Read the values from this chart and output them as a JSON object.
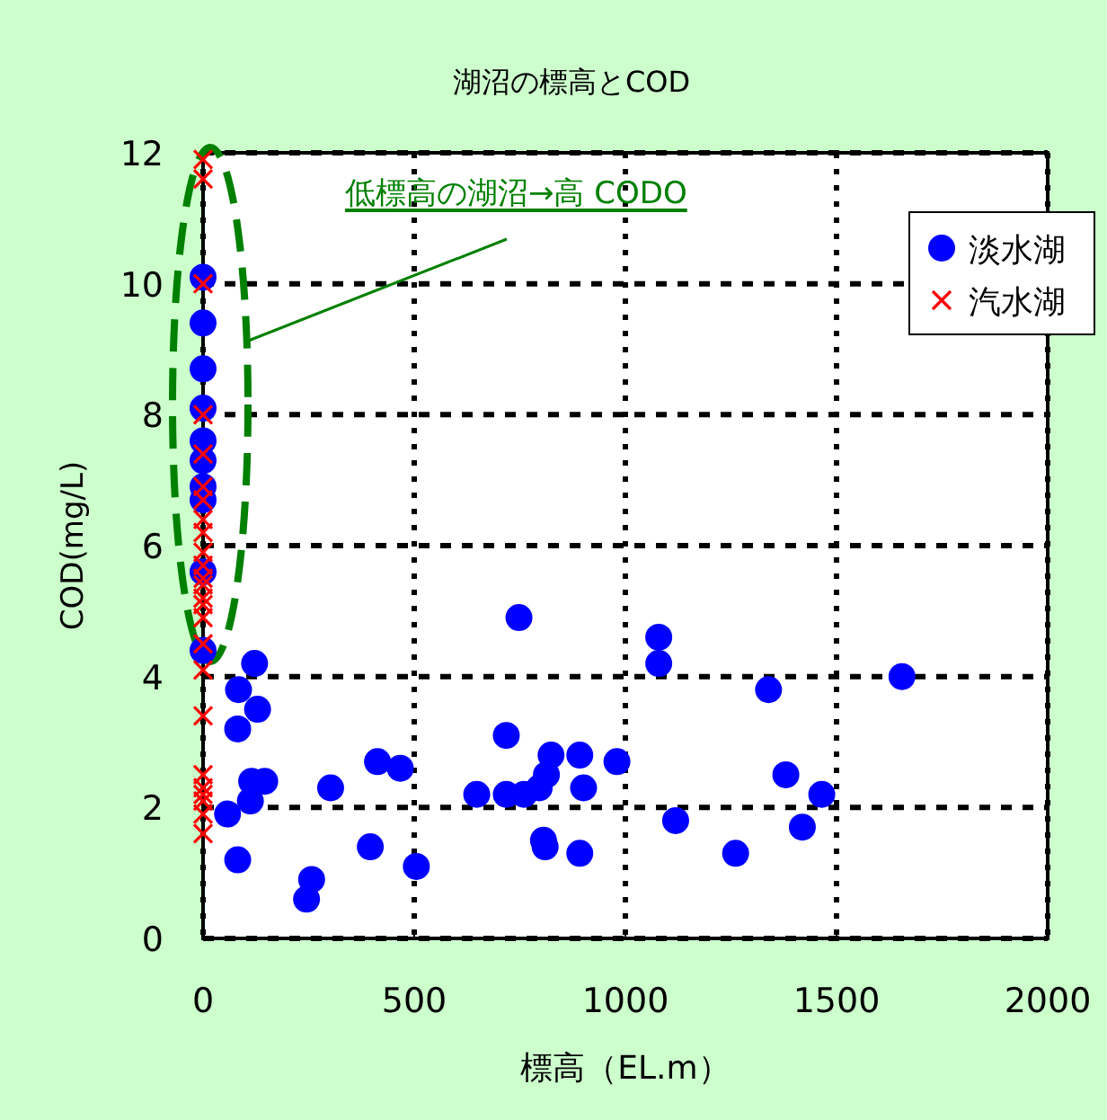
{
  "chart_data": {
    "type": "scatter",
    "title": "湖沼の標高とCOD",
    "xlabel": "標高（EL.m）",
    "ylabel": "COD(mg/L)",
    "xlim": [
      0,
      2000
    ],
    "xticks": [
      0,
      500,
      1000,
      1500,
      2000
    ],
    "ylim": [
      0,
      12
    ],
    "yticks": [
      0,
      2,
      4,
      6,
      8,
      10,
      12
    ],
    "grid": true,
    "legend": "top right",
    "annotations": [
      "低標高の湖沼→高 CODO"
    ],
    "series": [
      {
        "name": "淡水湖",
        "color": "#0000ff",
        "marker": "circle",
        "x": [
          0,
          0,
          0,
          0,
          0,
          0,
          0,
          0,
          0,
          0,
          122,
          84,
          129,
          82,
          115,
          146,
          112,
          58,
          82,
          257,
          245,
          302,
          413,
          467,
          396,
          505,
          648,
          718,
          748,
          718,
          760,
          796,
          813,
          824,
          892,
          901,
          980,
          806,
          810,
          892,
          1079,
          1079,
          1119,
          1261,
          1339,
          1380,
          1419,
          1465,
          1655
        ],
        "values": [
          10.1,
          9.4,
          8.7,
          8.1,
          7.6,
          7.3,
          6.9,
          6.7,
          5.6,
          4.4,
          4.2,
          3.8,
          3.5,
          3.2,
          2.4,
          2.4,
          2.1,
          1.9,
          1.2,
          0.9,
          0.6,
          2.3,
          2.7,
          2.6,
          1.4,
          1.1,
          2.2,
          3.1,
          4.9,
          2.2,
          2.2,
          2.3,
          2.5,
          2.8,
          2.8,
          2.3,
          2.7,
          1.5,
          1.4,
          1.3,
          4.6,
          4.2,
          1.8,
          1.3,
          3.8,
          2.5,
          1.7,
          2.2,
          4.0
        ]
      },
      {
        "name": "汽水湖",
        "color": "#ff0000",
        "marker": "cross",
        "x": [
          0,
          0,
          0,
          0,
          0,
          0,
          0,
          0,
          0,
          0,
          0,
          0,
          0,
          0,
          0,
          0,
          0,
          0,
          0,
          0,
          0,
          0,
          0,
          0,
          0
        ],
        "values": [
          11.9,
          11.6,
          10.0,
          8.0,
          7.4,
          6.9,
          6.7,
          6.4,
          6.2,
          5.9,
          5.7,
          5.5,
          5.4,
          5.2,
          5.1,
          4.9,
          4.5,
          4.1,
          3.4,
          2.5,
          2.3,
          2.2,
          2.1,
          1.9,
          1.6
        ]
      }
    ]
  }
}
